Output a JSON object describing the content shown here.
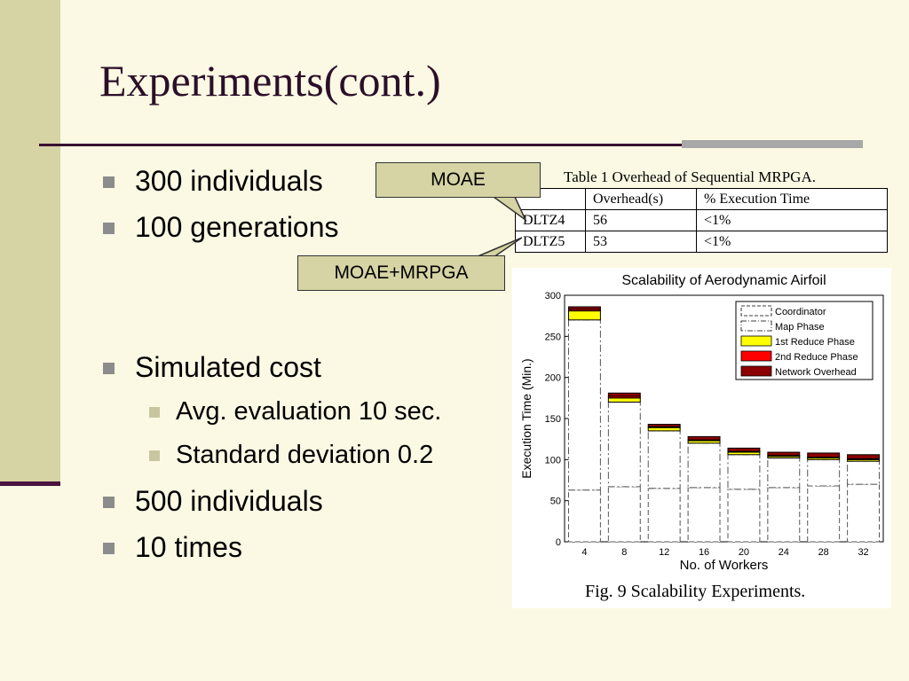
{
  "slide": {
    "title": "Experiments(cont.)",
    "bullets": [
      {
        "level": 1,
        "text": "300 individuals"
      },
      {
        "level": 1,
        "text": "100 generations"
      },
      {
        "level": 1,
        "text": "Simulated cost"
      },
      {
        "level": 2,
        "text": "Avg. evaluation 10 sec."
      },
      {
        "level": 2,
        "text": "Standard deviation 0.2"
      },
      {
        "level": 1,
        "text": "500 individuals"
      },
      {
        "level": 1,
        "text": "10 times"
      }
    ],
    "callouts": {
      "moae": "MOAE",
      "moae_mrpga": "MOAE+MRPGA"
    },
    "colors": {
      "sidebar": "#d6d3a4",
      "title": "#2b0f2a",
      "rule": "#3a1032",
      "accent_bar": "#a8a8a8"
    }
  },
  "table": {
    "caption": "Table 1 Overhead of Sequential MRPGA.",
    "headers": [
      "",
      "Overhead(s)",
      "% Execution Time"
    ],
    "rows": [
      [
        "DLTZ4",
        "56",
        "<1%"
      ],
      [
        "DLTZ5",
        "53",
        "<1%"
      ]
    ]
  },
  "figure": {
    "caption": "Fig. 9 Scalability Experiments."
  },
  "chart_data": {
    "type": "bar",
    "stacked": true,
    "title": "Scalability of Aerodynamic Airfoil",
    "xlabel": "No. of Workers",
    "ylabel": "Execution Time (Min.)",
    "categories": [
      "4",
      "8",
      "12",
      "16",
      "20",
      "24",
      "28",
      "32"
    ],
    "ylim": [
      0,
      300
    ],
    "yticks": [
      0,
      50,
      100,
      150,
      200,
      250,
      300
    ],
    "legend_position": "top-right",
    "series": [
      {
        "name": "Coordinator",
        "color": "#ffffff",
        "values": [
          63,
          67,
          65,
          66,
          64,
          66,
          68,
          70
        ]
      },
      {
        "name": "Map Phase",
        "color": "#ffffff",
        "values": [
          207,
          103,
          70,
          54,
          42,
          36,
          32,
          28
        ]
      },
      {
        "name": "1st Reduce Phase",
        "color": "#ffff00",
        "values": [
          11,
          5,
          4,
          3,
          3,
          2,
          2,
          2
        ]
      },
      {
        "name": "2nd Reduce Phase",
        "color": "#ff0000",
        "values": [
          2,
          2,
          1,
          1,
          1,
          1,
          1,
          1
        ]
      },
      {
        "name": "Network Overhead",
        "color": "#8b0000",
        "values": [
          3,
          4,
          3,
          4,
          4,
          4,
          5,
          5
        ]
      }
    ]
  }
}
